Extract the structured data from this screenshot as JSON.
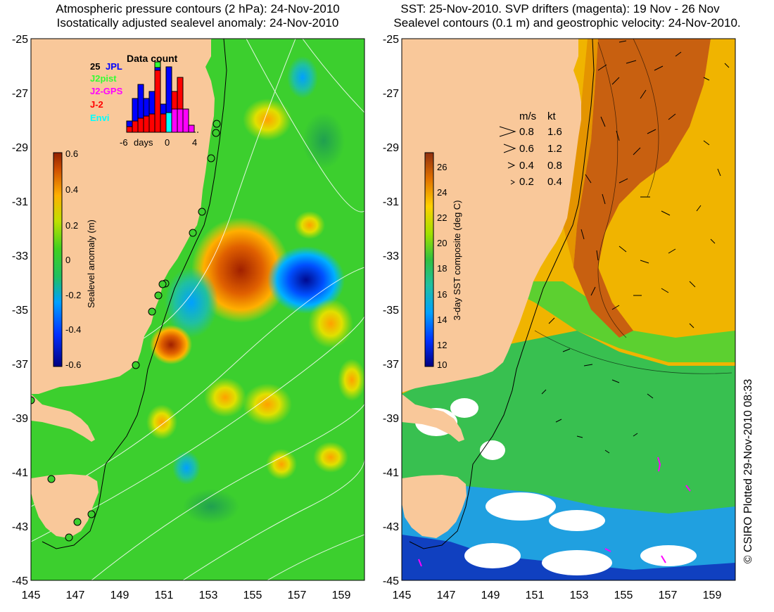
{
  "left_panel": {
    "title_line1": "Atmospheric pressure contours (2 hPa): 24-Nov-2010",
    "title_line2": "Isostatically adjusted sealevel anomaly: 24-Nov-2010",
    "y_ticks": [
      "-25",
      "-27",
      "-29",
      "-31",
      "-33",
      "-35",
      "-37",
      "-39",
      "-41",
      "-43",
      "-45"
    ],
    "x_ticks": [
      "145",
      "147",
      "149",
      "151",
      "153",
      "155",
      "157",
      "159"
    ],
    "colorbar": {
      "label": "Sealevel anomaly (m)",
      "ticks": [
        "0.6",
        "0.4",
        "0.2",
        "0",
        "-0.2",
        "-0.4",
        "-0.6"
      ],
      "range": [
        -0.6,
        0.6
      ]
    },
    "inset": {
      "title": "Data count",
      "label_25": "25",
      "missions": [
        {
          "name": "JPL",
          "color": "#0000ff"
        },
        {
          "name": "J2pist",
          "color": "#33ff33"
        },
        {
          "name": "J2-GPS",
          "color": "#ff00ff"
        },
        {
          "name": "J-2",
          "color": "#ff0000"
        },
        {
          "name": "Envi",
          "color": "#00ffff"
        }
      ],
      "x_ticks": [
        "-6",
        "days",
        "0",
        "4"
      ]
    }
  },
  "right_panel": {
    "title_line1": "SST: 25-Nov-2010. SVP drifters (magenta): 19 Nov - 26 Nov",
    "title_line2": "Sealevel contours (0.1 m) and geostrophic velocity: 24-Nov-2010.",
    "y_ticks": [
      "-25",
      "-27",
      "-29",
      "-31",
      "-33",
      "-35",
      "-37",
      "-39",
      "-41",
      "-43",
      "-45"
    ],
    "x_ticks": [
      "145",
      "147",
      "149",
      "151",
      "153",
      "155",
      "157",
      "159"
    ],
    "colorbar": {
      "label": "3-day SST composite (deg C)",
      "ticks": [
        "26",
        "24",
        "22",
        "20",
        "18",
        "16",
        "14",
        "12",
        "10"
      ],
      "range": [
        10,
        27
      ]
    },
    "velocity_legend": {
      "header_ms": "m/s",
      "header_kt": "kt",
      "rows": [
        {
          "ms": "0.8",
          "kt": "1.6"
        },
        {
          "ms": "0.6",
          "kt": "1.2"
        },
        {
          "ms": "0.4",
          "kt": "0.8"
        },
        {
          "ms": "0.2",
          "kt": "0.4"
        }
      ]
    }
  },
  "credit": "© CSIRO Plotted 29-Nov-2010 08:33",
  "colors": {
    "land": "#f9c89a",
    "ocean_left": "#36cc2a",
    "ocean_right_warm": "#f0b000",
    "ocean_right_cool": "#2fb84a"
  }
}
